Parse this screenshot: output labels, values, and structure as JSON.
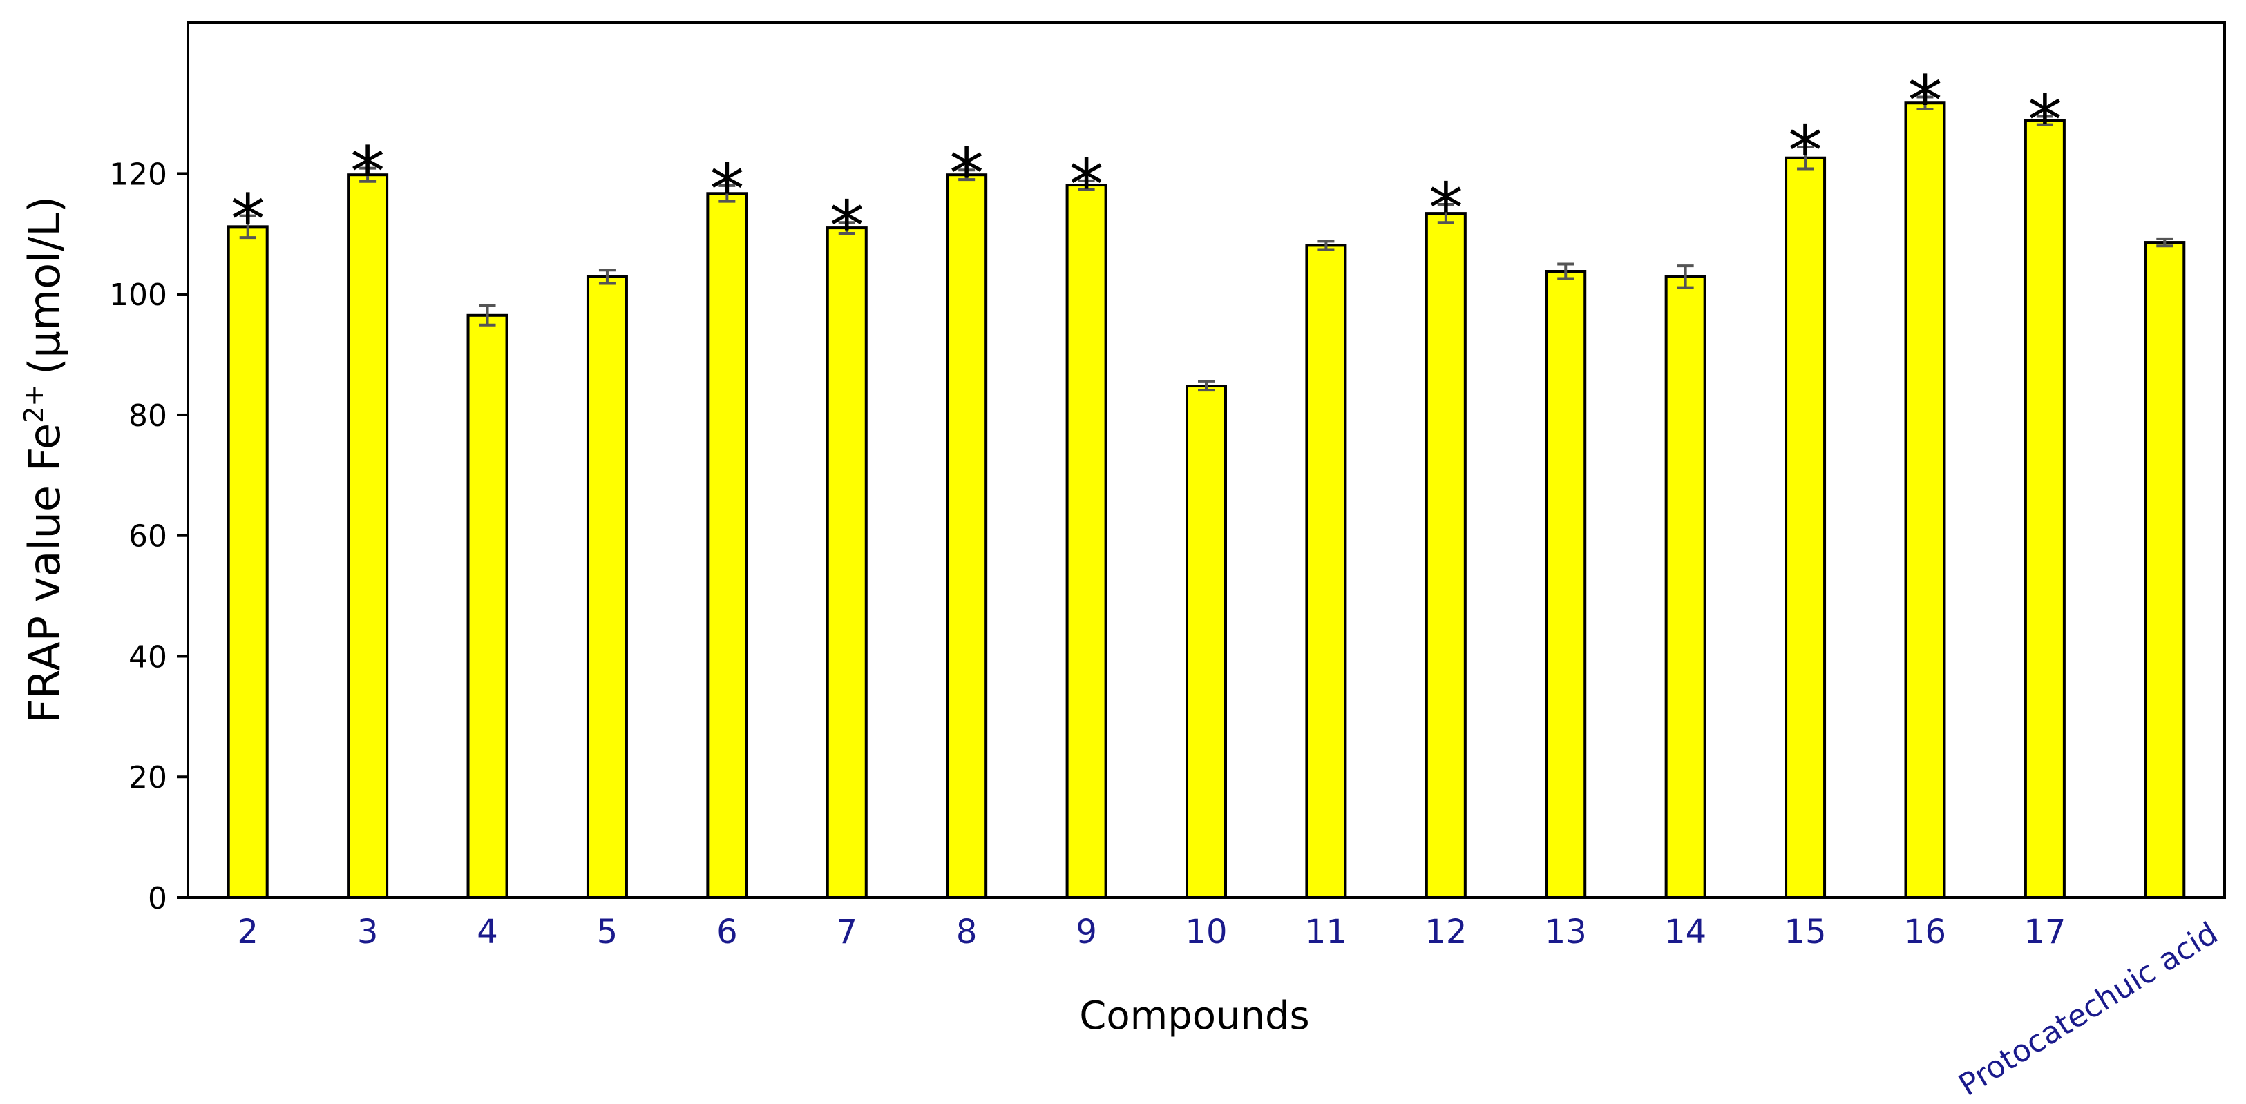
{
  "chart_data": {
    "type": "bar",
    "y_label": [
      "FRAP value Fe",
      "2+",
      "(µmol/L)"
    ],
    "x_label": "Compounds",
    "categories": [
      "2",
      "3",
      "4",
      "5",
      "6",
      "7",
      "8",
      "9",
      "10",
      "11",
      "12",
      "13",
      "14",
      "15",
      "16",
      "17",
      "Protocatechuic acid"
    ],
    "values": [
      111.2,
      119.8,
      96.5,
      102.9,
      116.7,
      111.0,
      119.8,
      118.1,
      84.8,
      108.1,
      113.4,
      103.8,
      102.9,
      122.6,
      131.7,
      128.8,
      108.6
    ],
    "errors": [
      1.8,
      1.1,
      1.6,
      1.1,
      1.3,
      0.9,
      0.8,
      0.7,
      0.7,
      0.7,
      1.5,
      1.2,
      1.8,
      1.8,
      1.0,
      0.7,
      0.6
    ],
    "markers": [
      "*",
      "*",
      null,
      null,
      "*",
      "*",
      "*",
      "*",
      null,
      null,
      "*",
      null,
      null,
      "*",
      "*",
      "*",
      null
    ],
    "color": "#ffff00",
    "error_color": "#555555",
    "category_color": "#1a1a8c",
    "ylim": [
      0,
      145
    ],
    "yticks": [
      0,
      20,
      40,
      60,
      80,
      100,
      120
    ],
    "grid": false
  }
}
